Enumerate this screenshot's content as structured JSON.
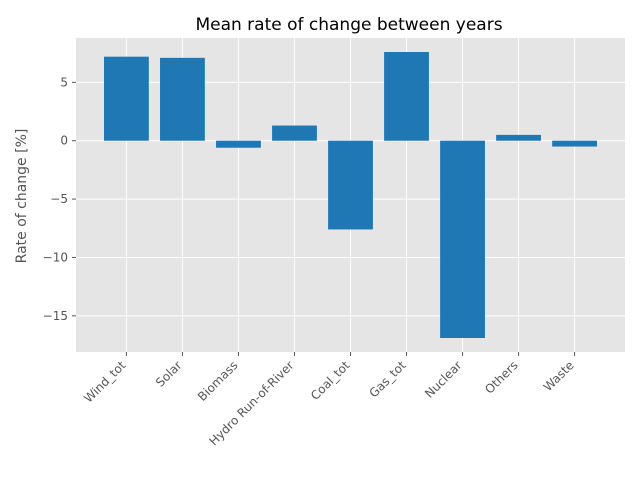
{
  "chart_data": {
    "type": "bar",
    "title": "Mean rate of change between years",
    "xlabel": "",
    "ylabel": "Rate of change [%]",
    "categories": [
      "Wind_tot",
      "Solar",
      "Biomass",
      "Hydro Run-of-River",
      "Coal_tot",
      "Gas_tot",
      "Nuclear",
      "Others",
      "Waste"
    ],
    "values": [
      7.2,
      7.1,
      -0.6,
      1.3,
      -7.6,
      7.6,
      -16.9,
      0.5,
      -0.5
    ],
    "ylim": [
      -18.1,
      8.8
    ],
    "yticks": [
      5,
      0,
      -5,
      -10,
      -15
    ],
    "ytick_labels": [
      "5",
      "0",
      "−5",
      "−10",
      "−15"
    ],
    "grid": true,
    "colors": {
      "bar": "#1f77b4",
      "plot_background": "#e5e5e5",
      "grid": "#ffffff",
      "text": "#555555"
    }
  }
}
